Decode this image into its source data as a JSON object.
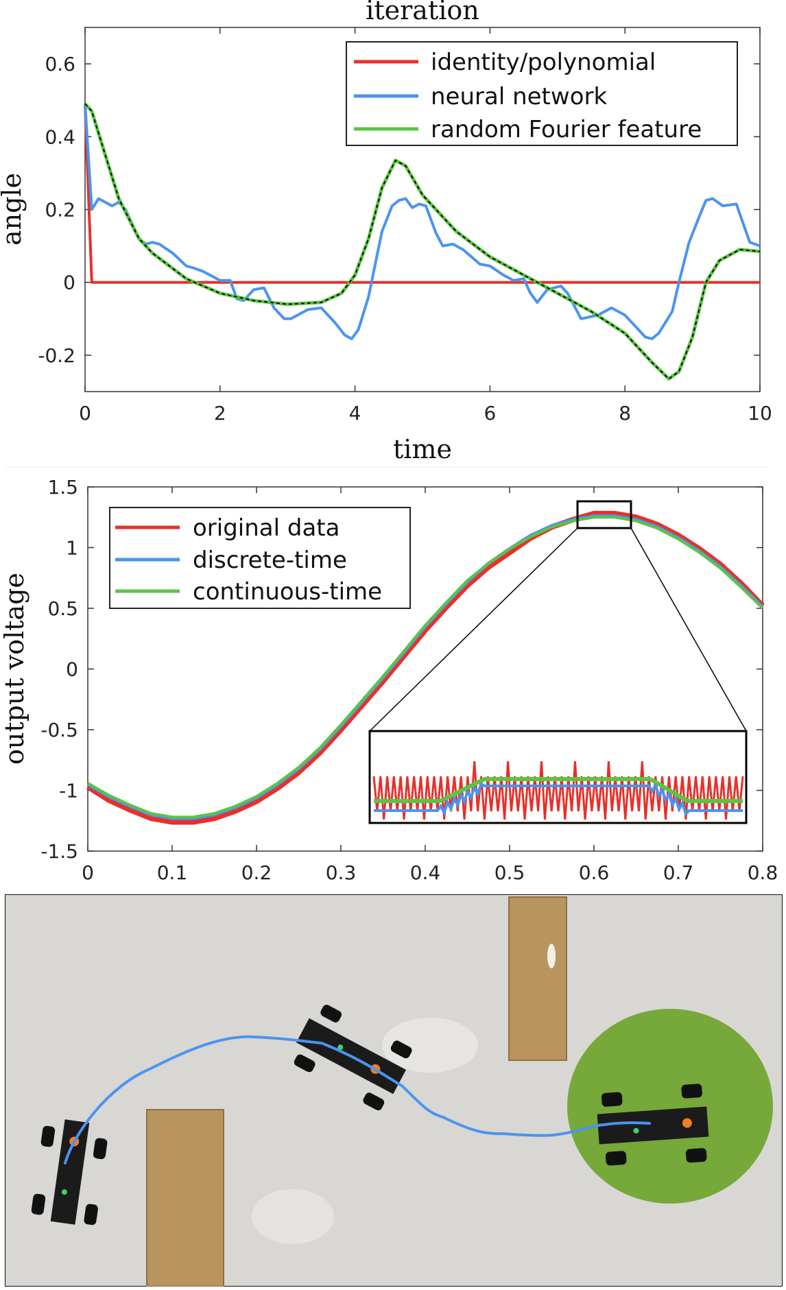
{
  "chart_data": [
    {
      "type": "line",
      "title": "iteration",
      "xlabel": "time",
      "ylabel": "angle",
      "xlim": [
        0,
        10
      ],
      "ylim": [
        -0.3,
        0.7
      ],
      "xticks": [
        "0",
        "2",
        "4",
        "6",
        "8",
        "10"
      ],
      "yticks": [
        "0.6",
        "0.4",
        "0.2",
        "0",
        "-0.2"
      ],
      "legend_position": "top-right",
      "grid": false,
      "series": [
        {
          "name": "identity/polynomial",
          "color": "#e8302a",
          "x": [
            0,
            0.1,
            10
          ],
          "y": [
            0.49,
            0,
            0
          ]
        },
        {
          "name": "neural network",
          "color": "#4a94f0",
          "x": [
            0,
            0.1,
            0.2,
            0.4,
            0.5,
            0.6,
            0.8,
            0.9,
            1.0,
            1.1,
            1.3,
            1.5,
            1.6,
            1.75,
            1.9,
            2.0,
            2.15,
            2.25,
            2.35,
            2.5,
            2.65,
            2.8,
            2.95,
            3.05,
            3.2,
            3.3,
            3.5,
            3.7,
            3.85,
            3.95,
            4.05,
            4.2,
            4.3,
            4.4,
            4.55,
            4.65,
            4.75,
            4.85,
            4.95,
            5.05,
            5.2,
            5.3,
            5.45,
            5.6,
            5.85,
            6.0,
            6.2,
            6.35,
            6.5,
            6.6,
            6.7,
            6.85,
            7.05,
            7.15,
            7.35,
            7.6,
            7.8,
            8.0,
            8.15,
            8.3,
            8.4,
            8.5,
            8.7,
            8.8,
            8.95,
            9.1,
            9.2,
            9.3,
            9.45,
            9.65,
            9.85,
            10.0
          ],
          "y": [
            0.49,
            0.2,
            0.23,
            0.21,
            0.22,
            0.2,
            0.12,
            0.105,
            0.11,
            0.105,
            0.08,
            0.045,
            0.04,
            0.03,
            0.015,
            0.005,
            0.005,
            -0.045,
            -0.05,
            -0.02,
            -0.015,
            -0.07,
            -0.1,
            -0.1,
            -0.085,
            -0.075,
            -0.07,
            -0.11,
            -0.145,
            -0.155,
            -0.13,
            -0.04,
            0.05,
            0.14,
            0.21,
            0.225,
            0.23,
            0.205,
            0.215,
            0.21,
            0.135,
            0.1,
            0.105,
            0.09,
            0.05,
            0.045,
            0.02,
            0.005,
            0.01,
            -0.03,
            -0.055,
            -0.02,
            -0.01,
            -0.03,
            -0.1,
            -0.09,
            -0.07,
            -0.09,
            -0.12,
            -0.15,
            -0.155,
            -0.14,
            -0.08,
            0.0,
            0.11,
            0.18,
            0.225,
            0.23,
            0.21,
            0.215,
            0.11,
            0.1
          ]
        },
        {
          "name": "random Fourier feature",
          "color": "#5cc444",
          "x": [
            0,
            0.1,
            0.3,
            0.5,
            0.8,
            1.0,
            1.5,
            2.0,
            2.5,
            3.0,
            3.5,
            3.8,
            4.0,
            4.2,
            4.4,
            4.6,
            4.75,
            5.0,
            5.5,
            6.0,
            6.5,
            7.0,
            7.5,
            8.0,
            8.4,
            8.65,
            8.8,
            9.0,
            9.2,
            9.4,
            9.7,
            10.0
          ],
          "y": [
            0.49,
            0.47,
            0.35,
            0.23,
            0.12,
            0.08,
            0.01,
            -0.03,
            -0.05,
            -0.06,
            -0.055,
            -0.03,
            0.02,
            0.12,
            0.26,
            0.335,
            0.32,
            0.24,
            0.14,
            0.07,
            0.02,
            -0.03,
            -0.08,
            -0.14,
            -0.22,
            -0.265,
            -0.245,
            -0.15,
            0.0,
            0.06,
            0.09,
            0.085
          ]
        }
      ]
    },
    {
      "type": "line",
      "title": "",
      "xlabel": "",
      "ylabel": "output voltage",
      "xlim": [
        0,
        0.8
      ],
      "ylim": [
        -1.5,
        1.5
      ],
      "xticks": [
        "0",
        "0.1",
        "0.2",
        "0.3",
        "0.4",
        "0.5",
        "0.6",
        "0.7",
        "0.8"
      ],
      "yticks": [
        "1.5",
        "1",
        "0.5",
        "0",
        "-0.5",
        "-1",
        "-1.5"
      ],
      "legend_position": "top-left",
      "grid": false,
      "inset_zoom": {
        "xlim": [
          0.58,
          0.645
        ],
        "ylim": [
          1.16,
          1.33
        ]
      },
      "x": [
        0,
        0.025,
        0.05,
        0.075,
        0.1,
        0.125,
        0.15,
        0.175,
        0.2,
        0.225,
        0.25,
        0.275,
        0.3,
        0.325,
        0.35,
        0.375,
        0.4,
        0.425,
        0.45,
        0.475,
        0.5,
        0.525,
        0.55,
        0.575,
        0.6,
        0.625,
        0.65,
        0.675,
        0.7,
        0.725,
        0.75,
        0.775,
        0.8
      ],
      "series": [
        {
          "name": "original data",
          "color": "#e8302a",
          "y": [
            -0.97,
            -1.08,
            -1.16,
            -1.23,
            -1.26,
            -1.26,
            -1.23,
            -1.17,
            -1.09,
            -0.98,
            -0.85,
            -0.69,
            -0.5,
            -0.3,
            -0.1,
            0.11,
            0.32,
            0.51,
            0.69,
            0.84,
            0.96,
            1.08,
            1.17,
            1.23,
            1.28,
            1.28,
            1.25,
            1.19,
            1.1,
            0.99,
            0.86,
            0.7,
            0.52
          ]
        },
        {
          "name": "discrete-time",
          "color": "#4a94f0",
          "y": [
            -0.95,
            -1.05,
            -1.13,
            -1.2,
            -1.23,
            -1.23,
            -1.2,
            -1.14,
            -1.06,
            -0.95,
            -0.82,
            -0.66,
            -0.47,
            -0.27,
            -0.07,
            0.14,
            0.35,
            0.54,
            0.72,
            0.87,
            0.99,
            1.1,
            1.18,
            1.23,
            1.26,
            1.26,
            1.23,
            1.17,
            1.08,
            0.97,
            0.84,
            0.68,
            0.51
          ]
        },
        {
          "name": "continuous-time",
          "color": "#5cc444",
          "y": [
            -0.94,
            -1.04,
            -1.12,
            -1.19,
            -1.22,
            -1.22,
            -1.19,
            -1.13,
            -1.05,
            -0.94,
            -0.81,
            -0.65,
            -0.46,
            -0.26,
            -0.06,
            0.15,
            0.36,
            0.55,
            0.73,
            0.87,
            0.99,
            1.09,
            1.17,
            1.22,
            1.25,
            1.25,
            1.22,
            1.16,
            1.07,
            0.96,
            0.83,
            0.67,
            0.5
          ]
        }
      ]
    }
  ],
  "photo": {
    "floor_color": "#d9d7d3",
    "box_color": "#b8955e",
    "target_color": "#76a83a",
    "trajectory_color": "#4a94f0"
  }
}
